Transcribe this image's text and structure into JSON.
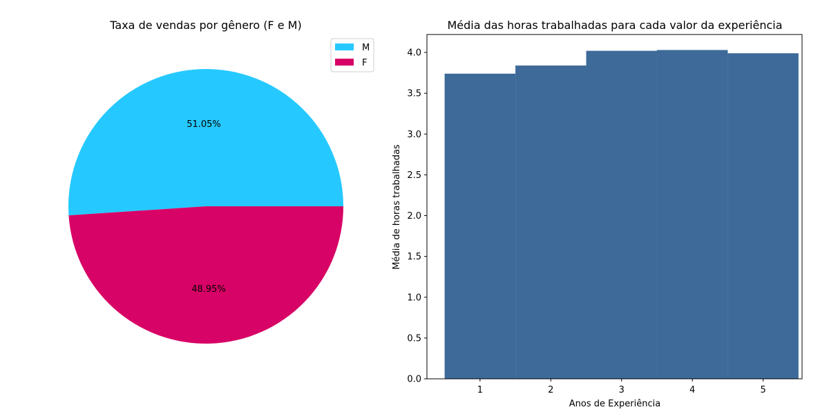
{
  "chart_data": [
    {
      "type": "pie",
      "title": "Taxa de vendas por gênero (F e M)",
      "categories": [
        "M",
        "F"
      ],
      "values": [
        51.05,
        48.95
      ],
      "value_labels": [
        "51.05%",
        "48.95%"
      ],
      "colors": [
        "#26c9ff",
        "#d80366"
      ],
      "legend": {
        "entries": [
          "M",
          "F"
        ],
        "placement": "top-right"
      }
    },
    {
      "type": "bar",
      "title": "Média das horas trabalhadas para cada valor da experiência",
      "xlabel": "Anos de Experiência",
      "ylabel": "Média de horas trabalhadas",
      "categories": [
        "1",
        "2",
        "3",
        "4",
        "5"
      ],
      "values": [
        3.74,
        3.84,
        4.02,
        4.03,
        3.99
      ],
      "ylim": [
        0,
        4.22
      ],
      "yticks": [
        "0.0",
        "0.5",
        "1.0",
        "1.5",
        "2.0",
        "2.5",
        "3.0",
        "3.5",
        "4.0"
      ],
      "bar_color": "#3d6a99",
      "grid": false
    }
  ]
}
